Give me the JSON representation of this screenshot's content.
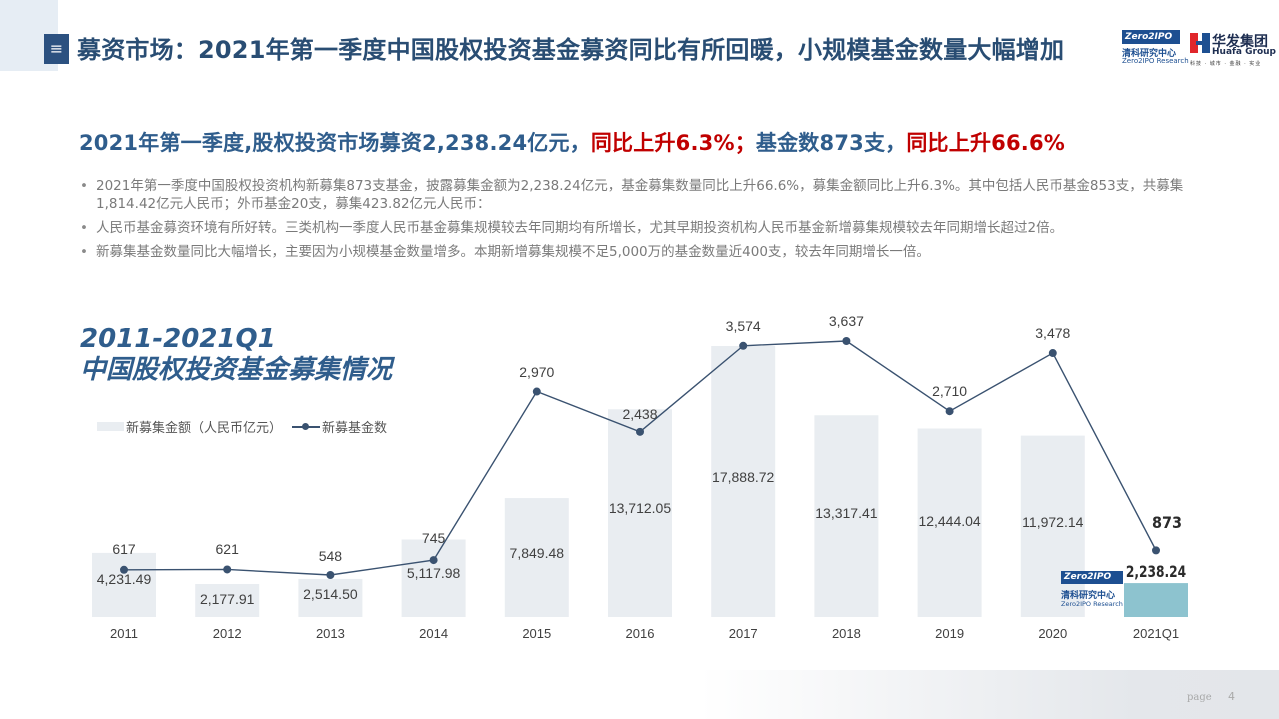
{
  "header": {
    "menu_icon": "≡",
    "title": "募资市场：2021年第一季度中国股权投资基金募资同比有所回暖，小规模基金数量大幅增加"
  },
  "logos": {
    "zero2ipo": {
      "box": "Zero2IPO",
      "cn": "清科研究中心",
      "en": "Zero2IPO Research"
    },
    "huafa": {
      "cn": "华发集团",
      "en": "Huafa Group",
      "tagline": "科技 · 城市 · 金融 · 实业"
    }
  },
  "headline": {
    "part1": "2021年第一季度,股权投资市场募资2,238.24亿元，",
    "part2": "同比上升6.3%；",
    "part3": "基金数873支，",
    "part4": "同比上升66.6%"
  },
  "bullets": [
    "2021年第一季度中国股权投资机构新募集873支基金，披露募集金额为2,238.24亿元，基金募集数量同比上升66.6%，募集金额同比上升6.3%。其中包括人民币基金853支，共募集1,814.42亿元人民币；外币基金20支，募集423.82亿元人民币：",
    "人民币基金募资环境有所好转。三类机构一季度人民币基金募集规模较去年同期均有所增长，尤其早期投资机构人民币基金新增募集规模较去年同期增长超过2倍。",
    "新募集基金数量同比大幅增长，主要因为小规模基金数量增多。本期新增募集规模不足5,000万的基金数量近400支，较去年同期增长一倍。"
  ],
  "chart": {
    "title_line1": "2011-2021Q1",
    "title_line2": "中国股权投资基金募集情况",
    "legend_bar": "新募集金额（人民币亿元）",
    "legend_line": "新募基金数"
  },
  "chart_data": {
    "type": "bar",
    "title": "2011-2021Q1 中国股权投资基金募集情况",
    "categories": [
      "2011",
      "2012",
      "2013",
      "2014",
      "2015",
      "2016",
      "2017",
      "2018",
      "2019",
      "2020",
      "2021Q1"
    ],
    "series": [
      {
        "name": "新募集金额（人民币亿元）",
        "type": "bar",
        "values": [
          4231.49,
          2177.91,
          2514.5,
          5117.98,
          7849.48,
          13712.05,
          17888.72,
          13317.41,
          12444.04,
          11972.14,
          2238.24
        ],
        "labels": [
          "4,231.49",
          "2,177.91",
          "2,514.50",
          "5,117.98",
          "7,849.48",
          "13,712.05",
          "17,888.72",
          "13,317.41",
          "12,444.04",
          "11,972.14",
          "2,238.24"
        ]
      },
      {
        "name": "新募基金数",
        "type": "line",
        "values": [
          617,
          621,
          548,
          745,
          2970,
          2438,
          3574,
          3637,
          2710,
          3478,
          873
        ],
        "labels": [
          "617",
          "621",
          "548",
          "745",
          "2,970",
          "2,438",
          "3,574",
          "3,637",
          "2,710",
          "3,478",
          "873"
        ]
      }
    ],
    "xlabel": "",
    "ylabel": "",
    "grid": false,
    "legend_position": "top-left",
    "colors": {
      "bar": "#e9edf1",
      "bar_highlight": "#8dc3cf",
      "line": "#3a5270"
    }
  },
  "footer": {
    "page_label": "page",
    "page_number": "4"
  }
}
